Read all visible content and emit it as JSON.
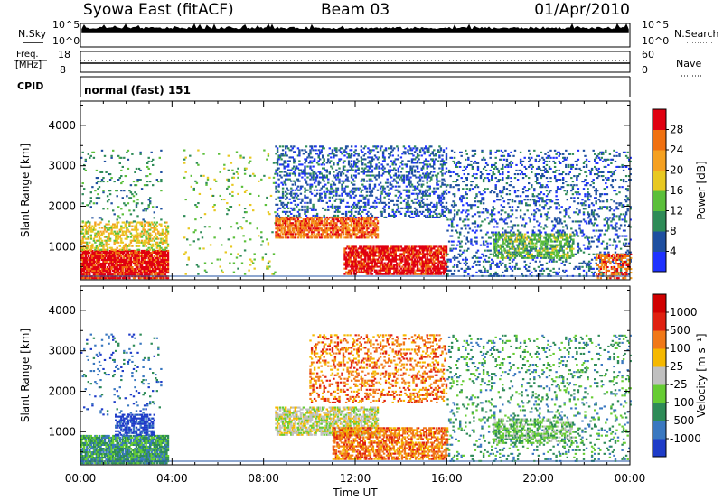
{
  "header": {
    "station": "Syowa East (fitACF)",
    "beam": "Beam 03",
    "date": "01/Apr/2010"
  },
  "strip": {
    "nsky_label": "N.Sky",
    "nsearch_label": "N.Search",
    "nsky_ticks": [
      "10^5",
      "10^0"
    ],
    "nsearch_ticks": [
      "10^5",
      "10^0"
    ],
    "freq_label": "Freq.",
    "freq_unit": "[MHz]",
    "freq_ticks": [
      "18",
      "8"
    ],
    "nave_label": "Nave",
    "nave_ticks": [
      "60",
      "0"
    ],
    "cpid_label": "CPID",
    "cpid_value": "normal (fast) 151"
  },
  "chart_data": [
    {
      "type": "heatmap",
      "title": "",
      "ylabel": "Slant Range [km]",
      "xlabel": "",
      "ylim": [
        180,
        4600
      ],
      "yticks": [
        1000,
        2000,
        3000,
        4000
      ],
      "xlim": [
        0,
        24
      ],
      "colorbar_label": "Power [dB]",
      "colorbar_ticks": [
        "4",
        "8",
        "12",
        "16",
        "20",
        "24",
        "28"
      ],
      "colorbar_colors": [
        "#1e32ff",
        "#1e4fa0",
        "#2e8b57",
        "#5bbf3a",
        "#e8c820",
        "#f5a020",
        "#f07010",
        "#e00010"
      ],
      "scatter_regions": [
        {
          "t0": 0.0,
          "t1": 3.8,
          "r0": 200,
          "r1": 900,
          "level": 7,
          "d": 0.85
        },
        {
          "t0": 0.0,
          "t1": 3.8,
          "r0": 900,
          "r1": 1600,
          "level": 4,
          "d": 0.45
        },
        {
          "t0": 0.0,
          "t1": 3.5,
          "r0": 1600,
          "r1": 3400,
          "level": 2,
          "d": 0.07
        },
        {
          "t0": 4.5,
          "t1": 8.5,
          "r0": 300,
          "r1": 3400,
          "level": 3,
          "d": 0.04
        },
        {
          "t0": 8.5,
          "t1": 16.0,
          "r0": 1700,
          "r1": 3500,
          "level": 1,
          "d": 0.28
        },
        {
          "t0": 8.5,
          "t1": 13.0,
          "r0": 1200,
          "r1": 1700,
          "level": 6,
          "d": 0.7
        },
        {
          "t0": 11.5,
          "t1": 16.0,
          "r0": 300,
          "r1": 1000,
          "level": 7,
          "d": 0.75
        },
        {
          "t0": 16.0,
          "t1": 24.0,
          "r0": 250,
          "r1": 3400,
          "level": 1,
          "d": 0.18
        },
        {
          "t0": 18.0,
          "t1": 21.5,
          "r0": 700,
          "r1": 1300,
          "level": 3,
          "d": 0.5
        },
        {
          "t0": 22.5,
          "t1": 24.0,
          "r0": 200,
          "r1": 800,
          "level": 6,
          "d": 0.5
        }
      ]
    },
    {
      "type": "heatmap",
      "title": "",
      "ylabel": "Slant Range [km]",
      "xlabel": "Time UT",
      "ylim": [
        180,
        4600
      ],
      "yticks": [
        1000,
        2000,
        3000,
        4000
      ],
      "xlim": [
        0,
        24
      ],
      "xticks": [
        "00:00",
        "04:00",
        "08:00",
        "12:00",
        "16:00",
        "20:00",
        "00:00"
      ],
      "colorbar_label": "Velocity [m s⁻¹]",
      "colorbar_ticks": [
        "1000",
        "500",
        "100",
        "25",
        "-25",
        "-100",
        "-500",
        "-1000"
      ],
      "colorbar_colors": [
        "#1e3cc8",
        "#3a78c0",
        "#2e8b57",
        "#66cc33",
        "#c0c0c0",
        "#f5b800",
        "#f07818",
        "#e02010",
        "#d00000"
      ],
      "scatter_regions": [
        {
          "t0": 0.0,
          "t1": 3.8,
          "r0": 200,
          "r1": 900,
          "level": 2,
          "d": 0.85
        },
        {
          "t0": 1.5,
          "t1": 3.2,
          "r0": 900,
          "r1": 1400,
          "level": 0,
          "d": 0.6
        },
        {
          "t0": 0.0,
          "t1": 3.5,
          "r0": 1400,
          "r1": 3400,
          "level": 1,
          "d": 0.07
        },
        {
          "t0": 8.5,
          "t1": 13.0,
          "r0": 900,
          "r1": 1600,
          "level": 4,
          "d": 0.65
        },
        {
          "t0": 11.0,
          "t1": 16.0,
          "r0": 300,
          "r1": 1100,
          "level": 6,
          "d": 0.6
        },
        {
          "t0": 10.0,
          "t1": 16.0,
          "r0": 1700,
          "r1": 3400,
          "level": 6,
          "d": 0.25
        },
        {
          "t0": 16.0,
          "t1": 24.0,
          "r0": 250,
          "r1": 3400,
          "level": 2,
          "d": 0.12
        },
        {
          "t0": 18.0,
          "t1": 21.5,
          "r0": 700,
          "r1": 1300,
          "level": 3,
          "d": 0.45
        }
      ]
    }
  ]
}
